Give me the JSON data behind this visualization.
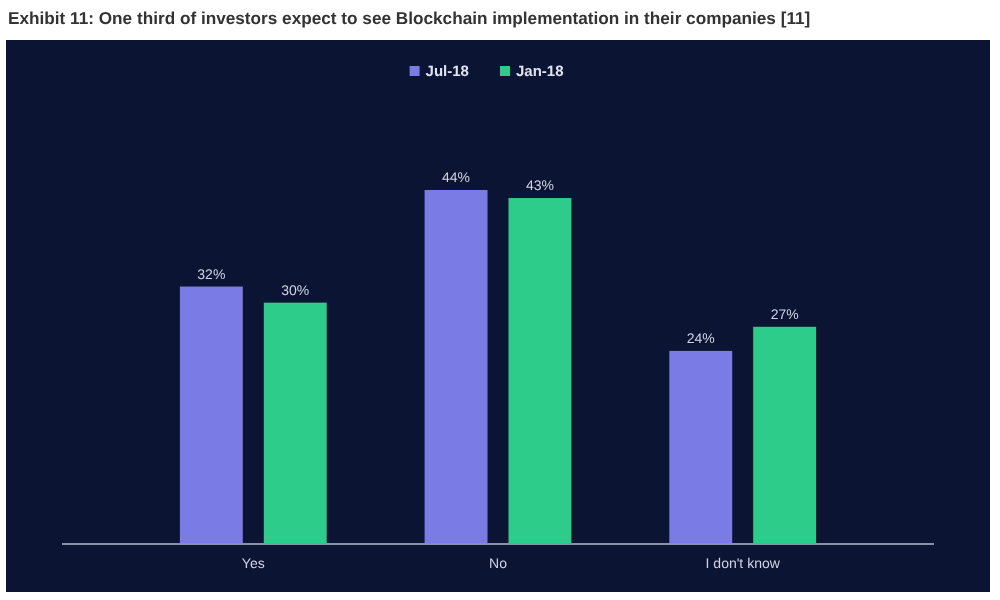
{
  "chart_data": {
    "type": "bar",
    "title": "Exhibit 11: One third of investors expect to see Blockchain implementation in their companies [11]",
    "categories": [
      "Yes",
      "No",
      "I don't know"
    ],
    "series": [
      {
        "name": "Jul-18",
        "color": "#7b7be6",
        "values": [
          32,
          44,
          24
        ],
        "value_labels": [
          "32%",
          "44%",
          "24%"
        ]
      },
      {
        "name": "Jan-18",
        "color": "#2ecc8a",
        "values": [
          30,
          43,
          27
        ],
        "value_labels": [
          "30%",
          "43%",
          "27%"
        ]
      }
    ],
    "legend": "top"
  }
}
